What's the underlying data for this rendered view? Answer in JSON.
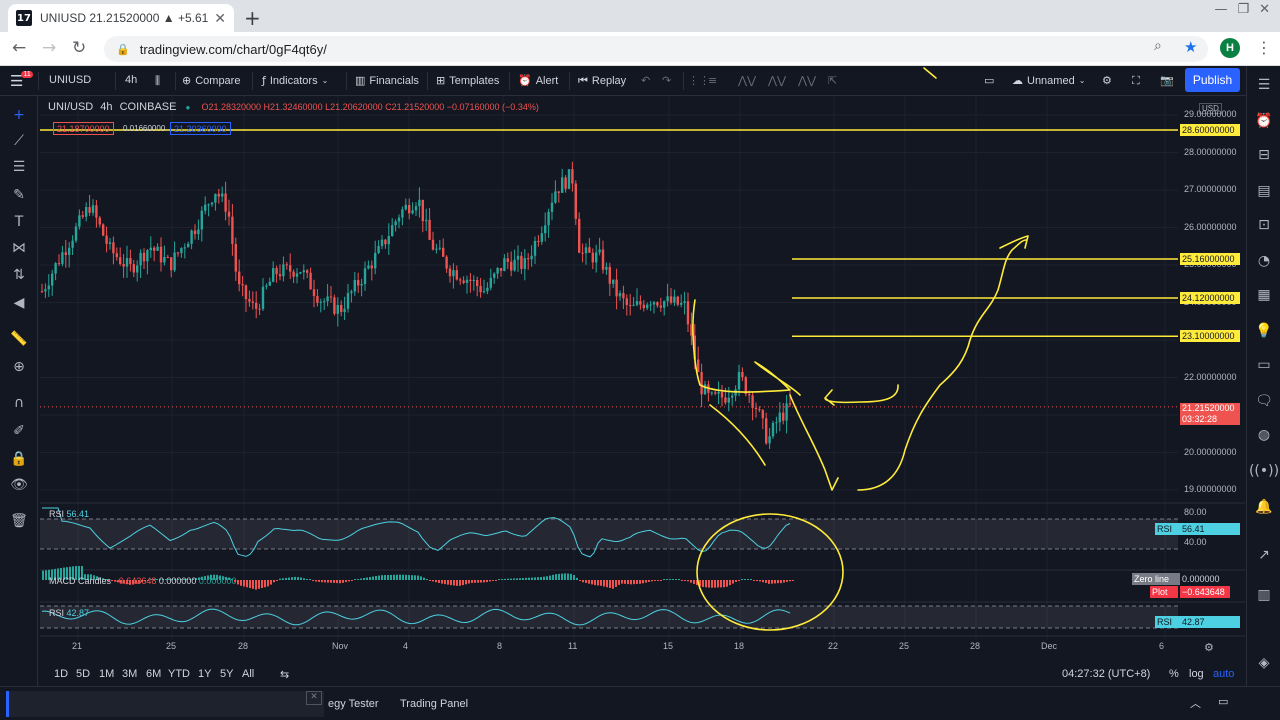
{
  "browser": {
    "tab_title": "UNIUSD 21.21520000 ▲ +5.61%",
    "url": "tradingview.com/chart/0gF4qt6y/",
    "profile_initial": "H"
  },
  "toolbar": {
    "symbol": "UNIUSD",
    "interval": "4h",
    "compare": "Compare",
    "indicators": "Indicators",
    "financials": "Financials",
    "templates": "Templates",
    "alert": "Alert",
    "replay": "Replay",
    "layout_name": "Unnamed",
    "publish": "Publish",
    "notif_badge": "11"
  },
  "legend": {
    "pair": "UNI/USD",
    "interval": "4h",
    "exchange": "COINBASE",
    "o": "O21.28320000",
    "h": "H21.32460000",
    "l": "L21.20620000",
    "c": "C21.21520000",
    "chg": "−0.07160000 (−0.34%)",
    "sell": "21.18700000",
    "spread": "0.01660000",
    "buy": "21.20360000"
  },
  "price_axis": {
    "currency": "USD",
    "ticks": [
      "29.00000000",
      "28.00000000",
      "27.00000000",
      "26.00000000",
      "25.00000000",
      "24.00000000",
      "23.00000000",
      "22.00000000",
      "21.00000000",
      "20.00000000",
      "19.00000000"
    ],
    "level_tags": [
      "28.60000000",
      "25.16000000",
      "24.12000000",
      "23.10000000"
    ],
    "last_price": "21.21520000",
    "countdown": "03:32:28"
  },
  "indicators": {
    "rsi1_label": "RSI",
    "rsi1_value": "56.41",
    "rsi1_axis_hi": "80.00",
    "rsi1_axis_lo": "40.00",
    "rsi1_tag": "RSI",
    "rsi1_tag_value": "56.41",
    "macd_label": "MACD Candles",
    "macd_v1": "−0.643648",
    "macd_v2": "0.000000",
    "macd_v3": "0.000000",
    "zero_line_tag": "Zero line",
    "zero_line_value": "0.000000",
    "plot_tag": "Plot",
    "plot_value": "−0.643648",
    "rsi2_label": "RSI",
    "rsi2_value": "42.87",
    "rsi2_tag": "RSI",
    "rsi2_tag_value": "42.87"
  },
  "time_axis": {
    "ticks": [
      "21",
      "25",
      "28",
      "Nov",
      "4",
      "8",
      "11",
      "15",
      "18",
      "22",
      "25",
      "28",
      "Dec",
      "6"
    ]
  },
  "bottom_bar": {
    "ranges": [
      "1D",
      "5D",
      "1M",
      "3M",
      "6M",
      "YTD",
      "1Y",
      "5Y",
      "All"
    ],
    "clock": "04:27:32 (UTC+8)",
    "percent": "%",
    "log": "log",
    "auto": "auto"
  },
  "bottom_panel": {
    "strategy_tester": "egy Tester",
    "trading_panel": "Trading Panel"
  },
  "chart_data": {
    "type": "candlestick",
    "horizontal_levels": [
      28.6,
      25.16,
      24.12,
      23.1
    ],
    "last_price": 21.2152,
    "ylim": [
      18.8,
      29.5
    ]
  },
  "colors": {
    "up": "#26a69a",
    "down": "#ef5350",
    "drawing": "#ffeb3b",
    "accent": "#2962ff"
  }
}
